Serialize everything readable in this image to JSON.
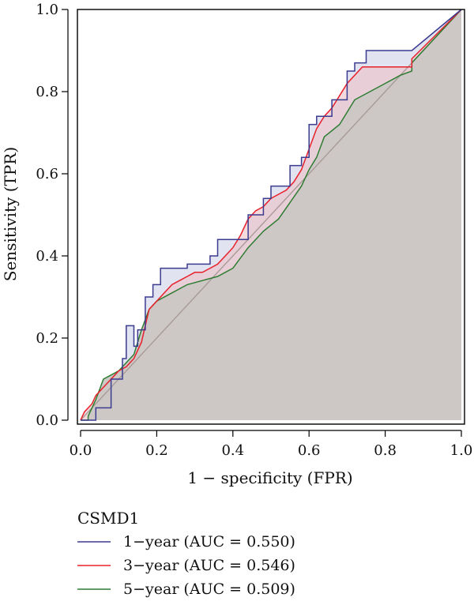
{
  "chart_data": {
    "type": "line",
    "title": "",
    "xlabel": "1 − specificity (FPR)",
    "ylabel": "Sensitivity (TPR)",
    "xlim": [
      0,
      1
    ],
    "ylim": [
      0,
      1
    ],
    "xticks": [
      "0.0",
      "0.2",
      "0.4",
      "0.6",
      "0.8",
      "1.0"
    ],
    "yticks": [
      "0.0",
      "0.2",
      "0.4",
      "0.6",
      "0.8",
      "1.0"
    ],
    "xtick_values": [
      0,
      0.2,
      0.4,
      0.6,
      0.8,
      1.0
    ],
    "ytick_values": [
      0,
      0.2,
      0.4,
      0.6,
      0.8,
      1.0
    ],
    "legend_title": "CSMD1",
    "legend_position": "bottom-left",
    "diagonal": {
      "name": "reference",
      "color": "#a89a97",
      "x": [
        0,
        1
      ],
      "y": [
        0,
        1
      ]
    },
    "series": [
      {
        "name": "1−year (AUC = 0.550)",
        "color": "#3b3b8f",
        "fill": "#cdd0e6",
        "x": [
          0,
          0.04,
          0.04,
          0.08,
          0.08,
          0.11,
          0.11,
          0.12,
          0.12,
          0.14,
          0.14,
          0.15,
          0.15,
          0.17,
          0.17,
          0.19,
          0.19,
          0.21,
          0.21,
          0.24,
          0.24,
          0.28,
          0.28,
          0.34,
          0.34,
          0.36,
          0.36,
          0.42,
          0.42,
          0.44,
          0.44,
          0.48,
          0.48,
          0.5,
          0.5,
          0.52,
          0.52,
          0.55,
          0.55,
          0.58,
          0.58,
          0.6,
          0.6,
          0.62,
          0.62,
          0.66,
          0.66,
          0.7,
          0.7,
          0.72,
          0.72,
          0.75,
          0.75,
          0.78,
          0.78,
          0.87,
          0.87,
          1.0
        ],
        "y": [
          0,
          0,
          0.03,
          0.03,
          0.1,
          0.1,
          0.15,
          0.15,
          0.23,
          0.23,
          0.18,
          0.18,
          0.22,
          0.22,
          0.3,
          0.3,
          0.33,
          0.33,
          0.37,
          0.37,
          0.37,
          0.37,
          0.38,
          0.38,
          0.4,
          0.4,
          0.44,
          0.44,
          0.44,
          0.44,
          0.5,
          0.5,
          0.54,
          0.54,
          0.57,
          0.57,
          0.57,
          0.57,
          0.62,
          0.62,
          0.64,
          0.64,
          0.72,
          0.72,
          0.74,
          0.74,
          0.78,
          0.78,
          0.85,
          0.85,
          0.87,
          0.87,
          0.9,
          0.9,
          0.9,
          0.9,
          0.9,
          1.0
        ]
      },
      {
        "name": "3−year (AUC = 0.546)",
        "color": "#e8202a",
        "fill": "#ecc0c6",
        "x": [
          0,
          0.01,
          0.03,
          0.04,
          0.06,
          0.08,
          0.1,
          0.12,
          0.14,
          0.16,
          0.17,
          0.18,
          0.2,
          0.22,
          0.24,
          0.26,
          0.28,
          0.3,
          0.32,
          0.34,
          0.36,
          0.38,
          0.4,
          0.42,
          0.44,
          0.46,
          0.48,
          0.5,
          0.52,
          0.54,
          0.56,
          0.58,
          0.6,
          0.62,
          0.64,
          0.66,
          0.68,
          0.7,
          0.72,
          0.74,
          0.76,
          0.8,
          0.84,
          0.87,
          0.87,
          1.0
        ],
        "y": [
          0,
          0.02,
          0.04,
          0.06,
          0.08,
          0.1,
          0.12,
          0.13,
          0.15,
          0.19,
          0.23,
          0.27,
          0.29,
          0.31,
          0.33,
          0.34,
          0.35,
          0.36,
          0.36,
          0.37,
          0.38,
          0.4,
          0.42,
          0.45,
          0.49,
          0.51,
          0.52,
          0.54,
          0.55,
          0.56,
          0.58,
          0.61,
          0.66,
          0.71,
          0.74,
          0.76,
          0.79,
          0.82,
          0.84,
          0.86,
          0.86,
          0.86,
          0.86,
          0.86,
          0.88,
          1.0
        ]
      },
      {
        "name": "5−year (AUC = 0.509)",
        "color": "#2e7d32",
        "fill": "#cdc8c6",
        "x": [
          0,
          0.02,
          0.02,
          0.04,
          0.06,
          0.08,
          0.1,
          0.12,
          0.14,
          0.16,
          0.18,
          0.2,
          0.24,
          0.28,
          0.32,
          0.36,
          0.38,
          0.4,
          0.44,
          0.48,
          0.52,
          0.55,
          0.58,
          0.6,
          0.62,
          0.64,
          0.68,
          0.72,
          0.76,
          0.8,
          0.84,
          0.87,
          0.87,
          1.0
        ],
        "y": [
          0,
          0,
          0.01,
          0.05,
          0.1,
          0.11,
          0.12,
          0.14,
          0.16,
          0.22,
          0.27,
          0.29,
          0.31,
          0.33,
          0.34,
          0.35,
          0.36,
          0.37,
          0.42,
          0.46,
          0.49,
          0.53,
          0.57,
          0.61,
          0.64,
          0.69,
          0.72,
          0.78,
          0.8,
          0.82,
          0.84,
          0.85,
          0.87,
          1.0
        ]
      }
    ]
  }
}
